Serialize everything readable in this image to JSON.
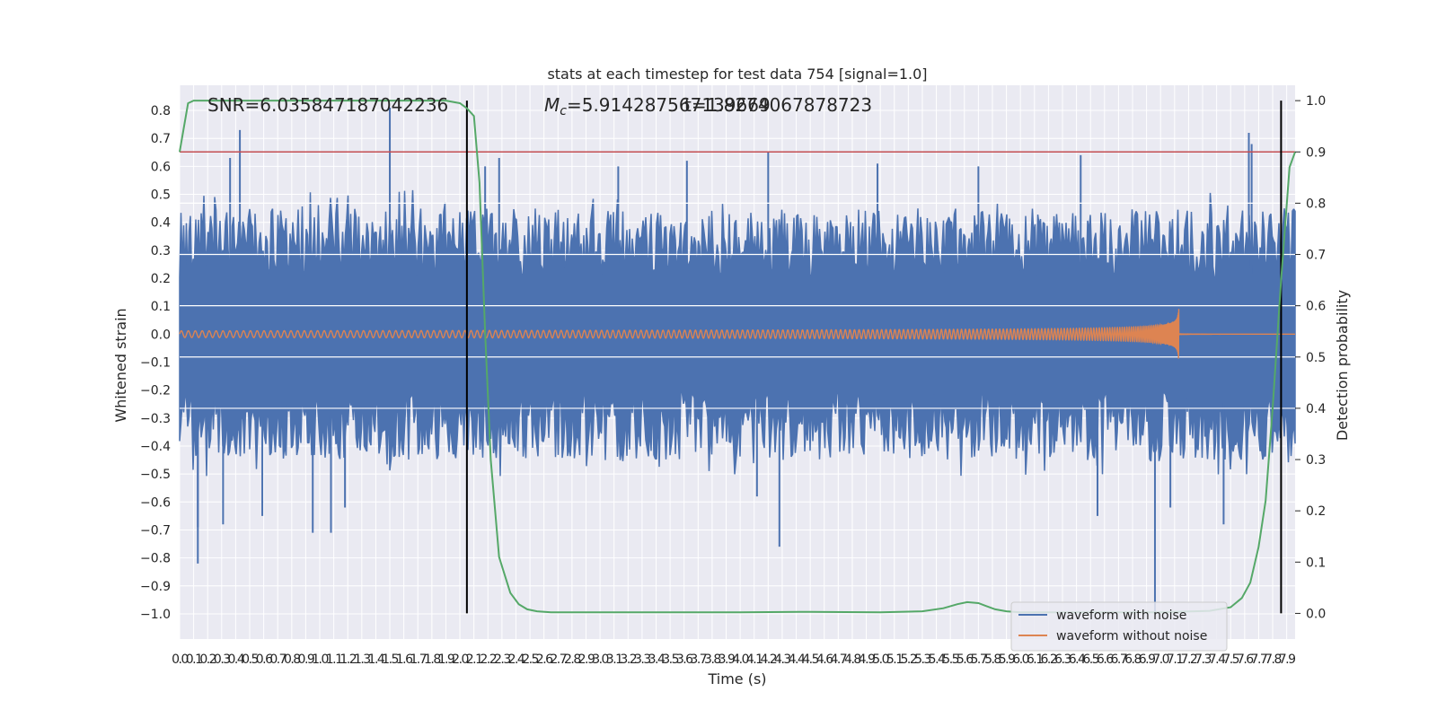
{
  "chart_data": {
    "type": "line",
    "title": "stats at each timestep for test data 754 [signal=1.0]",
    "xlabel": "Time (s)",
    "ylabel": "Whitened strain",
    "y2label": "Detection probability",
    "xlim": [
      0.0,
      7.96
    ],
    "ylim": [
      -1.09,
      0.89
    ],
    "y2lim": [
      -0.05,
      1.03
    ],
    "x_ticks": [
      "0.0",
      "0.1",
      "0.2",
      "0.3",
      "0.4",
      "0.5",
      "0.6",
      "0.7",
      "0.8",
      "0.9",
      "1.0",
      "1.1",
      "1.2",
      "1.3",
      "1.4",
      "1.5",
      "1.6",
      "1.7",
      "1.8",
      "1.9",
      "2.0",
      "2.1",
      "2.2",
      "2.3",
      "2.4",
      "2.5",
      "2.6",
      "2.7",
      "2.8",
      "2.9",
      "3.0",
      "3.1",
      "3.2",
      "3.3",
      "3.4",
      "3.5",
      "3.6",
      "3.7",
      "3.8",
      "3.9",
      "4.0",
      "4.1",
      "4.2",
      "4.3",
      "4.4",
      "4.5",
      "4.6",
      "4.7",
      "4.8",
      "4.9",
      "5.0",
      "5.1",
      "5.2",
      "5.3",
      "5.4",
      "5.5",
      "5.6",
      "5.7",
      "5.8",
      "5.9",
      "6.0",
      "6.1",
      "6.2",
      "6.3",
      "6.4",
      "6.5",
      "6.6",
      "6.7",
      "6.8",
      "6.9",
      "7.0",
      "7.1",
      "7.2",
      "7.3",
      "7.4",
      "7.5",
      "7.6",
      "7.7",
      "7.8",
      "7.9"
    ],
    "y_ticks": [
      "0.8",
      "0.7",
      "0.6",
      "0.5",
      "0.4",
      "0.3",
      "0.2",
      "0.1",
      "0.0",
      "−0.1",
      "−0.2",
      "−0.3",
      "−0.4",
      "−0.5",
      "−0.6",
      "−0.7",
      "−0.8",
      "−0.9",
      "−1.0"
    ],
    "y2_ticks": [
      "1.0",
      "0.9",
      "0.8",
      "0.7",
      "0.6",
      "0.5",
      "0.4",
      "0.3",
      "0.2",
      "0.1",
      "0.0"
    ],
    "annotations": {
      "snr": "SNR=6.035847187042236",
      "mc_prefix": "M",
      "mc_sub": "c",
      "mc_value": "=5.914287567139669",
      "overlap": "t=1.8274067878723"
    },
    "threshold": 0.9,
    "vlines": [
      2.05,
      7.86
    ],
    "detection_probability": {
      "x": [
        0.0,
        0.06,
        0.1,
        0.2,
        0.4,
        0.8,
        1.2,
        1.6,
        1.9,
        2.0,
        2.05,
        2.1,
        2.14,
        2.18,
        2.22,
        2.28,
        2.36,
        2.42,
        2.48,
        2.55,
        2.65,
        2.8,
        3.0,
        3.5,
        4.0,
        4.5,
        5.0,
        5.3,
        5.45,
        5.55,
        5.62,
        5.7,
        5.75,
        5.82,
        5.9,
        6.0,
        6.2,
        6.5,
        7.0,
        7.35,
        7.5,
        7.58,
        7.64,
        7.7,
        7.75,
        7.8,
        7.86,
        7.92,
        7.96
      ],
      "y": [
        0.9,
        0.995,
        1.0,
        1.0,
        1.0,
        1.0,
        1.0,
        1.0,
        1.0,
        0.995,
        0.985,
        0.97,
        0.84,
        0.55,
        0.3,
        0.11,
        0.04,
        0.018,
        0.008,
        0.004,
        0.002,
        0.002,
        0.002,
        0.002,
        0.002,
        0.003,
        0.002,
        0.004,
        0.01,
        0.018,
        0.022,
        0.02,
        0.015,
        0.008,
        0.004,
        0.002,
        0.002,
        0.002,
        0.002,
        0.005,
        0.012,
        0.03,
        0.06,
        0.13,
        0.22,
        0.4,
        0.65,
        0.87,
        0.9
      ]
    },
    "waveform_without_noise": {
      "chirp_end_time": 7.13,
      "start_amplitude": 0.012,
      "peak_amplitude": 0.11,
      "start_freq_hz": 20,
      "end_freq_hz": 300
    },
    "waveform_with_noise": {
      "description_values": "dense noise, mostly within ±0.45 with spikes",
      "typical_envelope": 0.45,
      "spikes": [
        {
          "x": 0.13,
          "y": -0.69
        },
        {
          "x": 0.13,
          "y": -0.82
        },
        {
          "x": 0.31,
          "y": -0.68
        },
        {
          "x": 0.36,
          "y": 0.63
        },
        {
          "x": 0.43,
          "y": 0.73
        },
        {
          "x": 0.59,
          "y": -0.65
        },
        {
          "x": 0.95,
          "y": -0.71
        },
        {
          "x": 1.08,
          "y": -0.71
        },
        {
          "x": 1.18,
          "y": -0.62
        },
        {
          "x": 1.5,
          "y": 0.81
        },
        {
          "x": 2.18,
          "y": 0.6
        },
        {
          "x": 2.28,
          "y": 0.63
        },
        {
          "x": 3.13,
          "y": 0.6
        },
        {
          "x": 3.62,
          "y": 0.62
        },
        {
          "x": 4.12,
          "y": -0.58
        },
        {
          "x": 4.2,
          "y": 0.65
        },
        {
          "x": 4.28,
          "y": -0.76
        },
        {
          "x": 4.98,
          "y": 0.61
        },
        {
          "x": 5.7,
          "y": 0.6
        },
        {
          "x": 6.43,
          "y": 0.64
        },
        {
          "x": 6.55,
          "y": -0.65
        },
        {
          "x": 6.96,
          "y": -1.0
        },
        {
          "x": 7.07,
          "y": -0.62
        },
        {
          "x": 7.45,
          "y": -0.68
        },
        {
          "x": 7.63,
          "y": 0.72
        },
        {
          "x": 7.65,
          "y": 0.68
        }
      ]
    },
    "legend": {
      "location": "lower-right",
      "entries": [
        {
          "label": "waveform with noise",
          "color": "#4c72b0"
        },
        {
          "label": "waveform without noise",
          "color": "#dd8452"
        }
      ]
    },
    "colors": {
      "noise": "#4c72b0",
      "clean": "#dd8452",
      "probability": "#55a868",
      "threshold": "#c44e52",
      "vline": "#000000",
      "axes_bg": "#eaeaf2",
      "grid": "#ffffff"
    }
  }
}
